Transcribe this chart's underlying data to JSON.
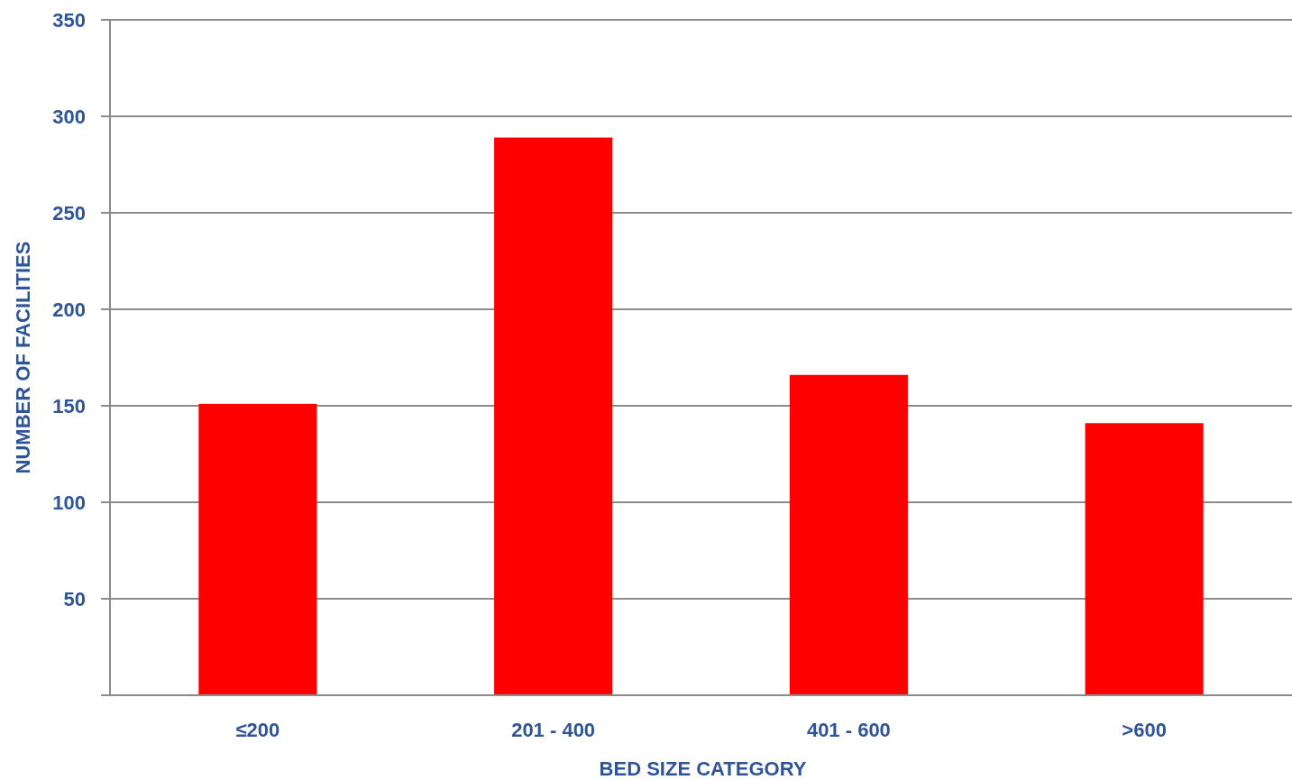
{
  "chart_data": {
    "type": "bar",
    "xlabel": "BED SIZE CATEGORY",
    "ylabel": "NUMBER OF FACILITIES",
    "categories": [
      "≤200",
      "201 - 400",
      "401 - 600",
      ">600"
    ],
    "values": [
      151,
      289,
      166,
      141
    ],
    "color": "#ff0000",
    "ylim": [
      0,
      350
    ],
    "yticks": [
      {
        "value": 0,
        "label": null
      },
      50,
      100,
      150,
      200,
      250,
      300,
      350
    ],
    "grid": "y"
  }
}
